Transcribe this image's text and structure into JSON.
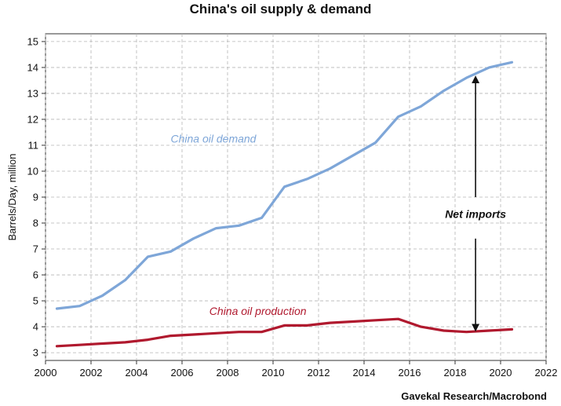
{
  "chart_data": {
    "type": "line",
    "title": "China's oil supply & demand",
    "xlabel": "",
    "ylabel": "Barrels/Day, million",
    "xlim": [
      2000,
      2022
    ],
    "ylim": [
      2.7,
      15.3
    ],
    "x_ticks": [
      "2000",
      "2002",
      "2004",
      "2006",
      "2008",
      "2010",
      "2012",
      "2014",
      "2016",
      "2018",
      "2020",
      "2022"
    ],
    "y_ticks": [
      "3",
      "4",
      "5",
      "6",
      "7",
      "8",
      "9",
      "10",
      "11",
      "12",
      "13",
      "14",
      "15"
    ],
    "grid": true,
    "source": "Gavekal Research/Macrobond",
    "series": [
      {
        "name": "China oil demand",
        "color": "#7ea6d8",
        "x": [
          2000.5,
          2001.5,
          2002.5,
          2003.5,
          2004.5,
          2005.5,
          2006.5,
          2007.5,
          2008.5,
          2009.5,
          2010.5,
          2011.5,
          2012.5,
          2013.5,
          2014.5,
          2015.5,
          2016.5,
          2017.5,
          2018.5,
          2019.5,
          2020.5
        ],
        "values": [
          4.7,
          4.8,
          5.2,
          5.8,
          6.7,
          6.9,
          7.4,
          7.8,
          7.9,
          8.2,
          9.4,
          9.7,
          10.1,
          10.6,
          11.1,
          12.1,
          12.5,
          13.1,
          13.6,
          14.0,
          14.2
        ]
      },
      {
        "name": "China oil production",
        "color": "#b0192e",
        "x": [
          2000.5,
          2001.5,
          2002.5,
          2003.5,
          2004.5,
          2005.5,
          2006.5,
          2007.5,
          2008.5,
          2009.5,
          2010.5,
          2011.5,
          2012.5,
          2013.5,
          2014.5,
          2015.5,
          2016.5,
          2017.5,
          2018.5,
          2019.5,
          2020.5
        ],
        "values": [
          3.25,
          3.3,
          3.35,
          3.4,
          3.5,
          3.65,
          3.7,
          3.75,
          3.8,
          3.8,
          4.05,
          4.05,
          4.15,
          4.2,
          4.25,
          4.3,
          4.0,
          3.85,
          3.8,
          3.85,
          3.9
        ]
      }
    ],
    "annotations": [
      {
        "text": "China oil demand",
        "color": "#7ea6d8"
      },
      {
        "text": "China oil production",
        "color": "#b0192e"
      },
      {
        "text": "Net imports",
        "color": "#111111",
        "arrow_x": 2018.9,
        "arrow_from": 3.9,
        "arrow_to": 13.6
      }
    ]
  }
}
